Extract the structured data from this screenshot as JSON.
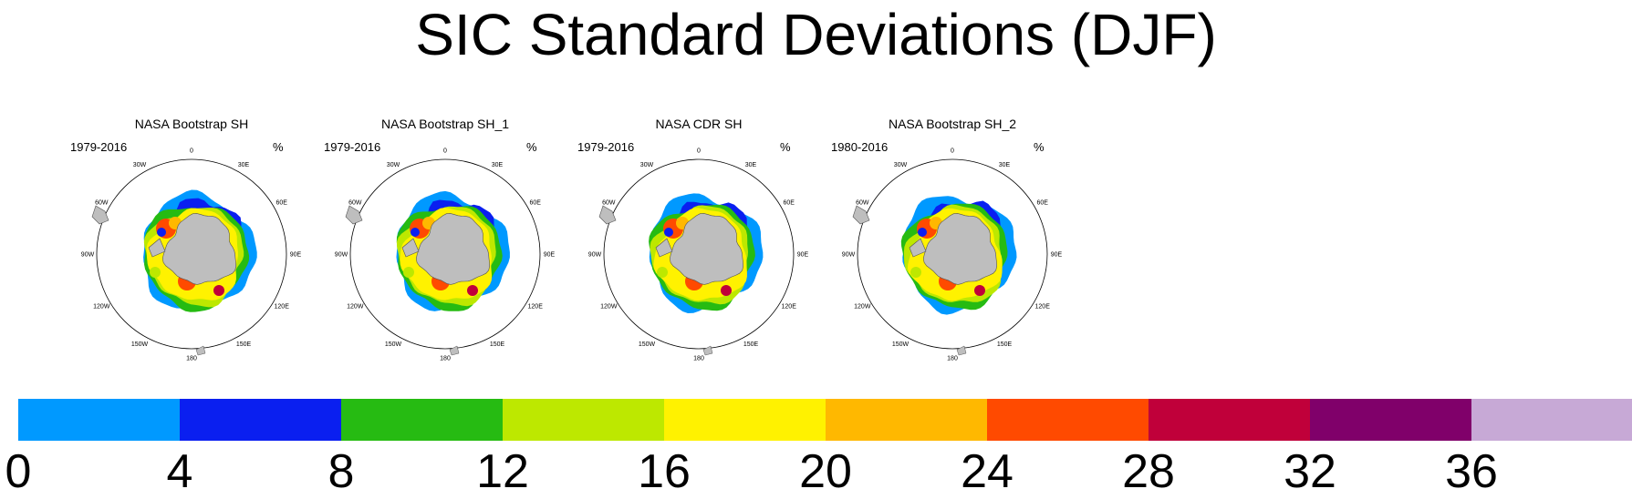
{
  "title": "SIC Standard Deviations (DJF)",
  "panels": [
    {
      "title": "NASA Bootstrap SH",
      "period": "1979-2016",
      "unit": "%"
    },
    {
      "title": "NASA Bootstrap SH_1",
      "period": "1979-2016",
      "unit": "%"
    },
    {
      "title": "NASA CDR SH",
      "period": "1979-2016",
      "unit": "%"
    },
    {
      "title": "NASA Bootstrap SH_2",
      "period": "1980-2016",
      "unit": "%"
    }
  ],
  "longitude_labels": [
    "0",
    "30E",
    "60E",
    "90E",
    "120E",
    "150E",
    "180",
    "150W",
    "120W",
    "90W",
    "60W",
    "30W"
  ],
  "colorbar": {
    "levels": [
      "0",
      "4",
      "8",
      "12",
      "16",
      "20",
      "24",
      "28",
      "32",
      "36"
    ],
    "colors": [
      "#0099ff",
      "#0a1ff0",
      "#26bb12",
      "#bde800",
      "#fff200",
      "#ffb800",
      "#ff4a00",
      "#c0003a",
      "#80006a",
      "#c7a9d6"
    ]
  },
  "land_color": "#bebebe"
}
